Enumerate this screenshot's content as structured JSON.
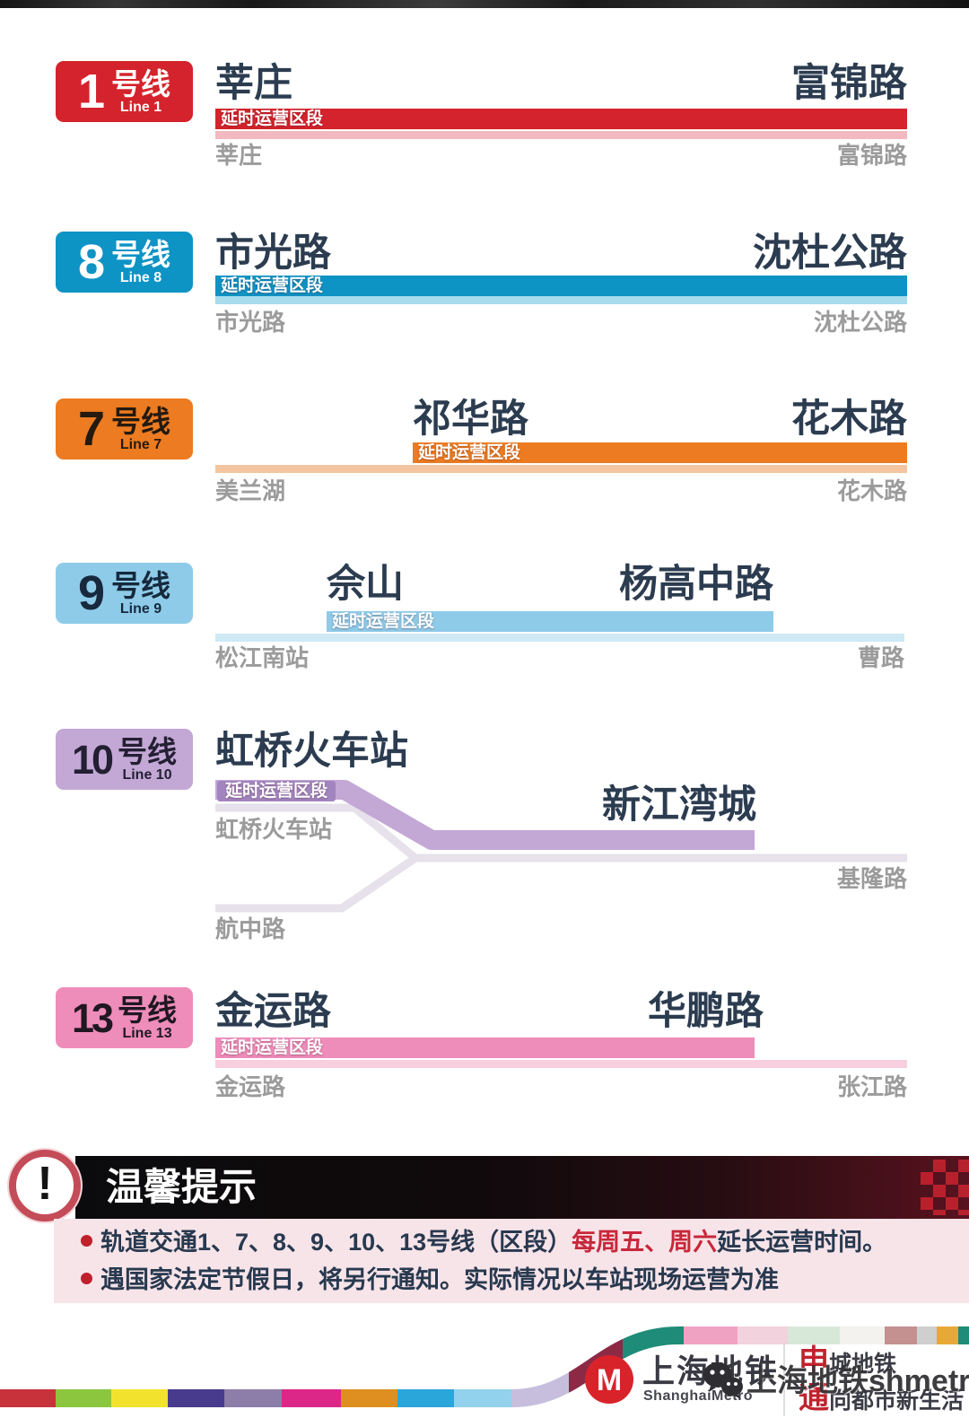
{
  "section_label": "延时运营区段",
  "lines": [
    {
      "badge": {
        "number": "1",
        "suffix": "号线",
        "sub": "Line 1"
      },
      "color": "#d4232c",
      "light_color": "#f2b9c1",
      "badge_text_color": "#ffffff",
      "ext_from": "莘庄",
      "ext_to": "富锦路",
      "full_from": "莘庄",
      "full_to": "富锦路"
    },
    {
      "badge": {
        "number": "8",
        "suffix": "号线",
        "sub": "Line 8"
      },
      "color": "#0e93c5",
      "light_color": "#a6dcee",
      "badge_text_color": "#ffffff",
      "ext_from": "市光路",
      "ext_to": "沈杜公路",
      "full_from": "市光路",
      "full_to": "沈杜公路"
    },
    {
      "badge": {
        "number": "7",
        "suffix": "号线",
        "sub": "Line 7"
      },
      "color": "#ec7b21",
      "light_color": "#f4c5a0",
      "badge_text_color": "#241a10",
      "ext_from": "祁华路",
      "ext_to": "花木路",
      "full_from": "美兰湖",
      "full_to": "花木路"
    },
    {
      "badge": {
        "number": "9",
        "suffix": "号线",
        "sub": "Line 9"
      },
      "color": "#8ecbe9",
      "light_color": "#cfe9f5",
      "badge_text_color": "#17293d",
      "ext_from": "佘山",
      "ext_to": "杨高中路",
      "full_from": "松江南站",
      "full_to": "曹路"
    },
    {
      "badge": {
        "number": "10",
        "suffix": "号线",
        "sub": "Line 10"
      },
      "color": "#c3a8d6",
      "light_color": "#e6e1ea",
      "badge_text_color": "#241f33",
      "label_bg": "#a285bf",
      "ext_from": "虹桥火车站",
      "ext_to": "新江湾城",
      "full_from": "虹桥火车站",
      "full_to": "基隆路",
      "branch_station": "航中路"
    },
    {
      "badge": {
        "number": "13",
        "suffix": "号线",
        "sub": "Line 13"
      },
      "color": "#ee8cba",
      "light_color": "#f7cfdf",
      "badge_text_color": "#201722",
      "ext_from": "金运路",
      "ext_to": "华鹏路",
      "full_from": "金运路",
      "full_to": "张江路"
    }
  ],
  "notice": {
    "title": "温馨提示",
    "icon_glyph": "!",
    "accent_red": "#c8273a",
    "text_dark": "#28394f",
    "bullets": [
      {
        "segments": [
          {
            "text": "轨道交通1、7、8、9、10、13号线（区段）",
            "style": "dark"
          },
          {
            "text": "每周五、周六",
            "style": "red"
          },
          {
            "text": "延长运营时间。",
            "style": "dark"
          }
        ]
      },
      {
        "segments": [
          {
            "text": "遇国家法定节假日，将另行通知。实际情况以车站现场运营为准",
            "style": "dark"
          }
        ]
      }
    ]
  },
  "footer": {
    "logo_title": "上海地铁",
    "logo_subtitle": "ShanghaiMetro",
    "slogan_line1_lead": "申",
    "slogan_line1_rest": "城地铁",
    "slogan_line2_lead": "通",
    "slogan_line2_rest": "向都市新生活",
    "watermark_text": "上海地铁shmetro",
    "logo_red": "#d8232a",
    "ribbon_segments": [
      {
        "from": 0,
        "to": 62,
        "color": "#c8323a"
      },
      {
        "from": 62,
        "to": 124,
        "color": "#8cc63e"
      },
      {
        "from": 124,
        "to": 187,
        "color": "#f2e22e"
      },
      {
        "from": 187,
        "to": 250,
        "color": "#483a8c"
      },
      {
        "from": 250,
        "to": 314,
        "color": "#8c7ea8"
      },
      {
        "from": 314,
        "to": 380,
        "color": "#dc2688"
      },
      {
        "from": 380,
        "to": 443,
        "color": "#de8f1f"
      },
      {
        "from": 443,
        "to": 506,
        "color": "#2ba6da"
      },
      {
        "from": 506,
        "to": 570,
        "color": "#92d2ec"
      },
      {
        "from": 570,
        "to": 634,
        "color": "#c6bedc"
      },
      {
        "from": 634,
        "to": 694,
        "color": "#8c2a46"
      },
      {
        "from": 694,
        "to": 762,
        "color": "#1e8c78"
      },
      {
        "from": 762,
        "to": 822,
        "color": "#f0a2c2"
      },
      {
        "from": 822,
        "to": 878,
        "color": "#f2d2dc"
      },
      {
        "from": 878,
        "to": 936,
        "color": "#d8e8d8"
      },
      {
        "from": 936,
        "to": 986,
        "color": "#f4f2ee"
      },
      {
        "from": 986,
        "to": 1022,
        "color": "#c49090"
      },
      {
        "from": 1022,
        "to": 1044,
        "color": "#cfcfcf"
      },
      {
        "from": 1044,
        "to": 1068,
        "color": "#e8a838"
      },
      {
        "from": 1068,
        "to": 1080,
        "color": "#1e8c78"
      }
    ]
  }
}
